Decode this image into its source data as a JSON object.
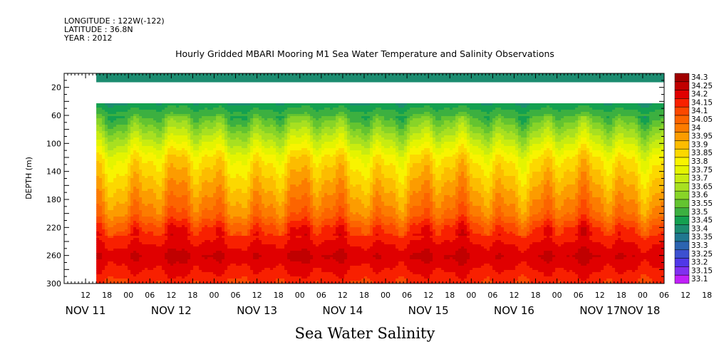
{
  "header": {
    "longitude": "LONGITUDE : 122W(-122)",
    "latitude": "LATITUDE : 36.8N",
    "year": "YEAR : 2012"
  },
  "chart_data": {
    "type": "heatmap",
    "title": "Hourly Gridded MBARI Mooring M1 Sea Water Temperature and Salinity Observations",
    "xlabel": "",
    "ylabel": "DEPTH (m)",
    "variable_label": "Sea Water Salinity",
    "ylim": [
      300,
      0
    ],
    "y_ticks": [
      20,
      60,
      100,
      140,
      180,
      220,
      260,
      300
    ],
    "x_hour_ticks": [
      "12",
      "18",
      "00",
      "06",
      "12",
      "18",
      "00",
      "06",
      "12",
      "18",
      "00",
      "06",
      "12",
      "18",
      "00",
      "06",
      "12",
      "18",
      "00",
      "06",
      "12",
      "18",
      "00",
      "06",
      "12",
      "18",
      "00",
      "06",
      "12",
      "18",
      "00",
      "06"
    ],
    "x_day_labels": [
      "NOV 11",
      "NOV 12",
      "NOV 13",
      "NOV 14",
      "NOV 15",
      "NOV 16",
      "NOV 17",
      "NOV 18"
    ],
    "x_start_hour": 6,
    "x_range_hours": [
      6,
      174
    ],
    "data_start_hour": 15,
    "colorbar_levels": [
      "34.3",
      "34.25",
      "34.2",
      "34.15",
      "34.1",
      "34.05",
      "34",
      "33.95",
      "33.9",
      "33.85",
      "33.8",
      "33.75",
      "33.7",
      "33.65",
      "33.6",
      "33.55",
      "33.5",
      "33.45",
      "33.4",
      "33.35",
      "33.3",
      "33.25",
      "33.2",
      "33.15",
      "33.1"
    ],
    "colorbar_colors": [
      "#a00000",
      "#c00000",
      "#e00000",
      "#f82000",
      "#fc4800",
      "#fc6400",
      "#fc7c00",
      "#fc9c00",
      "#fcbc00",
      "#fcd800",
      "#f8f400",
      "#e4f400",
      "#c8ec10",
      "#a8e020",
      "#88d428",
      "#64c430",
      "#3cb040",
      "#14a050",
      "#1c8c70",
      "#207890",
      "#2c64b0",
      "#3c50d0",
      "#5038e8",
      "#8030f0",
      "#c020f8"
    ],
    "depth_profile": [
      {
        "depth": 10,
        "salinity": 33.4
      },
      {
        "depth": 40,
        "salinity": 33.45
      },
      {
        "depth": 60,
        "salinity": 33.55
      },
      {
        "depth": 80,
        "salinity": 33.65
      },
      {
        "depth": 100,
        "salinity": 33.75
      },
      {
        "depth": 120,
        "salinity": 33.85
      },
      {
        "depth": 140,
        "salinity": 33.9
      },
      {
        "depth": 160,
        "salinity": 33.95
      },
      {
        "depth": 180,
        "salinity": 34.0
      },
      {
        "depth": 200,
        "salinity": 34.05
      },
      {
        "depth": 220,
        "salinity": 34.15
      },
      {
        "depth": 240,
        "salinity": 34.2
      },
      {
        "depth": 260,
        "salinity": 34.25
      },
      {
        "depth": 280,
        "salinity": 34.2
      },
      {
        "depth": 300,
        "salinity": 34.15
      }
    ]
  }
}
